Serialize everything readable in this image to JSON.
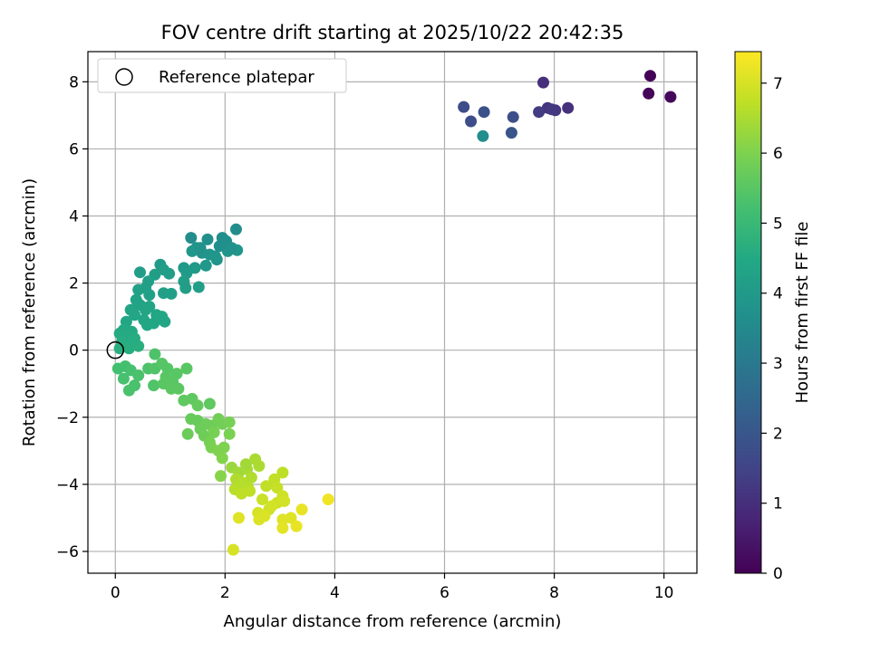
{
  "chart_data": {
    "type": "scatter",
    "title": "FOV centre drift starting at 2025/10/22 20:42:35",
    "xlabel": "Angular distance from reference (arcmin)",
    "ylabel": "Rotation from reference (arcmin)",
    "xlim": [
      -0.5,
      10.6
    ],
    "ylim": [
      -6.65,
      8.9
    ],
    "xticks": [
      0,
      2,
      4,
      6,
      8,
      10
    ],
    "yticks": [
      -6,
      -4,
      -2,
      0,
      2,
      4,
      6,
      8
    ],
    "grid": true,
    "legend": {
      "placement": "top-left",
      "label": "Reference platepar",
      "marker": "hollow-circle"
    },
    "reference_point": {
      "x": 0,
      "y": 0
    },
    "colorbar": {
      "label": "Hours from first FF file",
      "colormap": "viridis",
      "range": [
        0,
        7.45
      ],
      "ticks": [
        0,
        1,
        2,
        3,
        4,
        5,
        6,
        7
      ]
    },
    "points": [
      [
        9.75,
        8.18,
        0.05
      ],
      [
        9.72,
        7.65,
        0.1
      ],
      [
        10.12,
        7.55,
        0.15
      ],
      [
        7.8,
        7.98,
        1.0
      ],
      [
        7.88,
        7.22,
        1.1
      ],
      [
        8.02,
        7.15,
        1.15
      ],
      [
        7.95,
        7.18,
        1.2
      ],
      [
        8.25,
        7.22,
        1.05
      ],
      [
        7.72,
        7.1,
        1.3
      ],
      [
        6.35,
        7.25,
        1.7
      ],
      [
        6.48,
        6.82,
        1.75
      ],
      [
        6.72,
        7.1,
        1.85
      ],
      [
        7.25,
        6.95,
        1.8
      ],
      [
        7.22,
        6.48,
        2.0
      ],
      [
        6.7,
        6.38,
        3.6
      ],
      [
        1.38,
        3.35,
        3.6
      ],
      [
        2.2,
        3.6,
        3.6
      ],
      [
        1.68,
        3.3,
        3.7
      ],
      [
        1.95,
        3.35,
        3.65
      ],
      [
        2.02,
        3.25,
        3.7
      ],
      [
        1.48,
        3.05,
        3.75
      ],
      [
        1.58,
        2.9,
        3.8
      ],
      [
        1.72,
        2.85,
        3.85
      ],
      [
        1.85,
        2.7,
        3.8
      ],
      [
        2.05,
        2.95,
        3.85
      ],
      [
        2.22,
        2.98,
        3.9
      ],
      [
        2.12,
        3.05,
        3.75
      ],
      [
        1.4,
        2.95,
        3.9
      ],
      [
        1.65,
        2.52,
        3.95
      ],
      [
        1.82,
        2.8,
        3.9
      ],
      [
        1.45,
        2.45,
        4.0
      ],
      [
        1.55,
        3.05,
        3.8
      ],
      [
        1.9,
        3.1,
        3.7
      ],
      [
        1.25,
        2.45,
        4.0
      ],
      [
        1.3,
        2.3,
        4.05
      ],
      [
        1.25,
        2.05,
        4.1
      ],
      [
        1.28,
        1.85,
        4.15
      ],
      [
        1.52,
        1.88,
        4.1
      ],
      [
        0.82,
        2.55,
        4.05
      ],
      [
        0.88,
        2.4,
        4.1
      ],
      [
        0.72,
        2.25,
        4.15
      ],
      [
        0.6,
        2.05,
        4.2
      ],
      [
        0.98,
        2.28,
        4.1
      ],
      [
        0.88,
        1.7,
        4.2
      ],
      [
        1.02,
        1.68,
        4.2
      ],
      [
        0.55,
        1.85,
        4.2
      ],
      [
        0.42,
        1.8,
        4.25
      ],
      [
        0.62,
        1.65,
        4.2
      ],
      [
        0.45,
        2.32,
        4.1
      ],
      [
        0.38,
        1.5,
        4.3
      ],
      [
        0.45,
        1.35,
        4.3
      ],
      [
        0.55,
        1.2,
        4.35
      ],
      [
        0.62,
        1.3,
        4.35
      ],
      [
        0.28,
        1.2,
        4.35
      ],
      [
        0.35,
        1.05,
        4.4
      ],
      [
        0.52,
        0.9,
        4.4
      ],
      [
        0.58,
        0.75,
        4.45
      ],
      [
        0.75,
        1.05,
        4.4
      ],
      [
        0.85,
        1.0,
        4.45
      ],
      [
        0.9,
        0.85,
        4.4
      ],
      [
        0.7,
        0.8,
        4.45
      ],
      [
        0.2,
        0.85,
        4.45
      ],
      [
        0.15,
        0.6,
        4.5
      ],
      [
        0.3,
        0.55,
        4.5
      ],
      [
        0.22,
        0.4,
        4.55
      ],
      [
        0.08,
        0.5,
        4.55
      ],
      [
        0.12,
        0.25,
        4.6
      ],
      [
        0.32,
        0.2,
        4.6
      ],
      [
        0.25,
        0.05,
        4.6
      ],
      [
        0.42,
        0.12,
        4.65
      ],
      [
        0.08,
        0.05,
        4.65
      ],
      [
        0.35,
        0.35,
        4.6
      ],
      [
        0.05,
        -0.55,
        5.2
      ],
      [
        0.18,
        -0.48,
        5.2
      ],
      [
        0.15,
        -0.85,
        5.25
      ],
      [
        0.28,
        -0.6,
        5.25
      ],
      [
        0.42,
        -0.75,
        5.3
      ],
      [
        0.25,
        -1.2,
        5.3
      ],
      [
        0.35,
        -1.05,
        5.3
      ],
      [
        0.6,
        -0.55,
        5.35
      ],
      [
        0.72,
        -0.55,
        5.4
      ],
      [
        0.72,
        -0.12,
        5.35
      ],
      [
        0.7,
        -1.05,
        5.4
      ],
      [
        0.85,
        -0.4,
        5.45
      ],
      [
        0.95,
        -0.55,
        5.45
      ],
      [
        0.92,
        -0.8,
        5.5
      ],
      [
        0.88,
        -1.0,
        5.5
      ],
      [
        1.05,
        -0.95,
        5.5
      ],
      [
        1.12,
        -0.7,
        5.5
      ],
      [
        1.3,
        -0.55,
        5.5
      ],
      [
        1.15,
        -1.15,
        5.55
      ],
      [
        1.25,
        -1.5,
        5.6
      ],
      [
        1.02,
        -1.15,
        5.55
      ],
      [
        1.4,
        -1.45,
        5.6
      ],
      [
        1.5,
        -1.65,
        5.65
      ],
      [
        1.72,
        -1.6,
        5.6
      ],
      [
        1.38,
        -2.05,
        5.7
      ],
      [
        1.5,
        -2.1,
        5.7
      ],
      [
        1.32,
        -2.5,
        5.75
      ],
      [
        1.55,
        -2.35,
        5.75
      ],
      [
        1.65,
        -2.2,
        5.8
      ],
      [
        1.75,
        -2.25,
        5.8
      ],
      [
        1.62,
        -2.55,
        5.8
      ],
      [
        1.88,
        -2.05,
        5.85
      ],
      [
        1.95,
        -2.2,
        5.85
      ],
      [
        2.08,
        -2.15,
        5.9
      ],
      [
        1.8,
        -2.45,
        5.9
      ],
      [
        2.08,
        -2.5,
        5.95
      ],
      [
        1.72,
        -2.75,
        5.9
      ],
      [
        1.75,
        -2.9,
        5.95
      ],
      [
        1.88,
        -3.0,
        6.0
      ],
      [
        1.98,
        -2.9,
        6.0
      ],
      [
        1.95,
        -3.22,
        6.05
      ],
      [
        1.92,
        -3.75,
        6.1
      ],
      [
        2.12,
        -3.5,
        6.3
      ],
      [
        2.25,
        -3.65,
        6.4
      ],
      [
        2.4,
        -3.55,
        6.45
      ],
      [
        2.55,
        -3.25,
        6.5
      ],
      [
        2.62,
        -3.45,
        6.5
      ],
      [
        2.38,
        -3.4,
        6.4
      ],
      [
        2.48,
        -3.8,
        6.55
      ],
      [
        2.2,
        -3.85,
        6.55
      ],
      [
        2.32,
        -3.95,
        6.6
      ],
      [
        2.42,
        -4.1,
        6.6
      ],
      [
        2.18,
        -4.15,
        6.65
      ],
      [
        2.3,
        -4.28,
        6.7
      ],
      [
        2.45,
        -4.2,
        6.7
      ],
      [
        2.75,
        -4.05,
        6.75
      ],
      [
        2.9,
        -3.85,
        6.75
      ],
      [
        3.05,
        -3.65,
        6.7
      ],
      [
        2.95,
        -4.1,
        6.8
      ],
      [
        2.68,
        -4.45,
        6.85
      ],
      [
        2.8,
        -4.75,
        6.9
      ],
      [
        2.95,
        -4.55,
        6.9
      ],
      [
        3.05,
        -4.35,
        6.9
      ],
      [
        3.08,
        -4.5,
        6.95
      ],
      [
        2.85,
        -4.65,
        6.95
      ],
      [
        2.6,
        -4.85,
        7.0
      ],
      [
        2.62,
        -5.05,
        7.05
      ],
      [
        2.72,
        -4.95,
        7.05
      ],
      [
        3.05,
        -5.05,
        7.1
      ],
      [
        3.2,
        -5.0,
        7.1
      ],
      [
        3.05,
        -5.3,
        7.15
      ],
      [
        3.3,
        -5.25,
        7.2
      ],
      [
        3.4,
        -4.75,
        7.2
      ],
      [
        3.88,
        -4.45,
        7.3
      ],
      [
        2.25,
        -5.0,
        7.1
      ],
      [
        2.15,
        -5.95,
        7.0
      ]
    ]
  }
}
